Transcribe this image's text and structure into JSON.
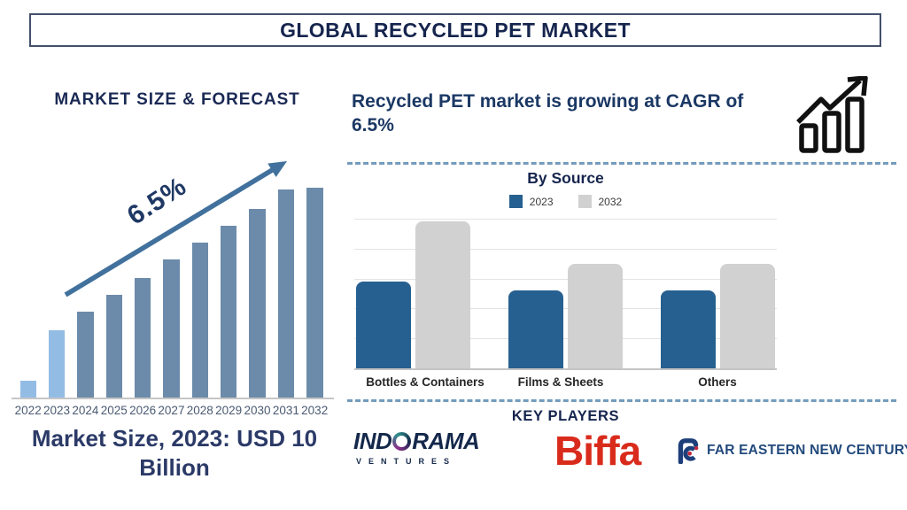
{
  "page": {
    "title": "GLOBAL RECYCLED PET MARKET",
    "background": "#FFFFFF",
    "accent_navy": "#16254E"
  },
  "left": {
    "growth_label": "6.5%",
    "caption": "Market Size, 2023: USD 10 Billion"
  },
  "right": {
    "headline": "Recycled PET market is growing at CAGR of 6.5%",
    "icons": {
      "growth_chart": "bar-chart-with-rising-arrow"
    },
    "key_players": {
      "heading": "KEY PLAYERS",
      "indorama": {
        "before_o": "IND",
        "after_o": "RAMA",
        "subtext": "VENTURES",
        "color": "#14284B"
      },
      "biffa": {
        "text": "Biffa",
        "color": "#D92B1C"
      },
      "fenc": {
        "text": "FAR EASTERN NEW CENTURY",
        "color": "#234A7C"
      }
    }
  },
  "chart_data": [
    {
      "type": "bar",
      "title": "MARKET SIZE & FORECAST",
      "categories": [
        "2022",
        "2023",
        "2024",
        "2025",
        "2026",
        "2027",
        "2028",
        "2029",
        "2030",
        "2031",
        "2032"
      ],
      "values": [
        8,
        32,
        41,
        49,
        57,
        66,
        74,
        82,
        90,
        99,
        100
      ],
      "unit": "relative bar height, % of 2032 bar (axis unlabeled, illustrative)",
      "annotations": [
        "6.5% CAGR arrow",
        "Market Size, 2023: USD 10 Billion"
      ],
      "highlight_categories": [
        "2022",
        "2023"
      ],
      "colors": {
        "highlight": "#93BCE5",
        "default": "#6C8BAA",
        "arrow": "#41719C"
      },
      "grid": false,
      "legend": false
    },
    {
      "type": "bar",
      "subtype": "grouped",
      "title": "By Source",
      "categories": [
        "Bottles & Containers",
        "Films & Sheets",
        "Others"
      ],
      "series": [
        {
          "name": "2023",
          "color": "#266090",
          "values": [
            29,
            26,
            26
          ]
        },
        {
          "name": "2032",
          "color": "#D1D1D1",
          "values": [
            49,
            35,
            35
          ]
        }
      ],
      "unit": "relative units, one gridline = 10 (axis unlabeled, illustrative)",
      "ylim": [
        0,
        50
      ],
      "grid": true,
      "legend_position": "top"
    }
  ]
}
